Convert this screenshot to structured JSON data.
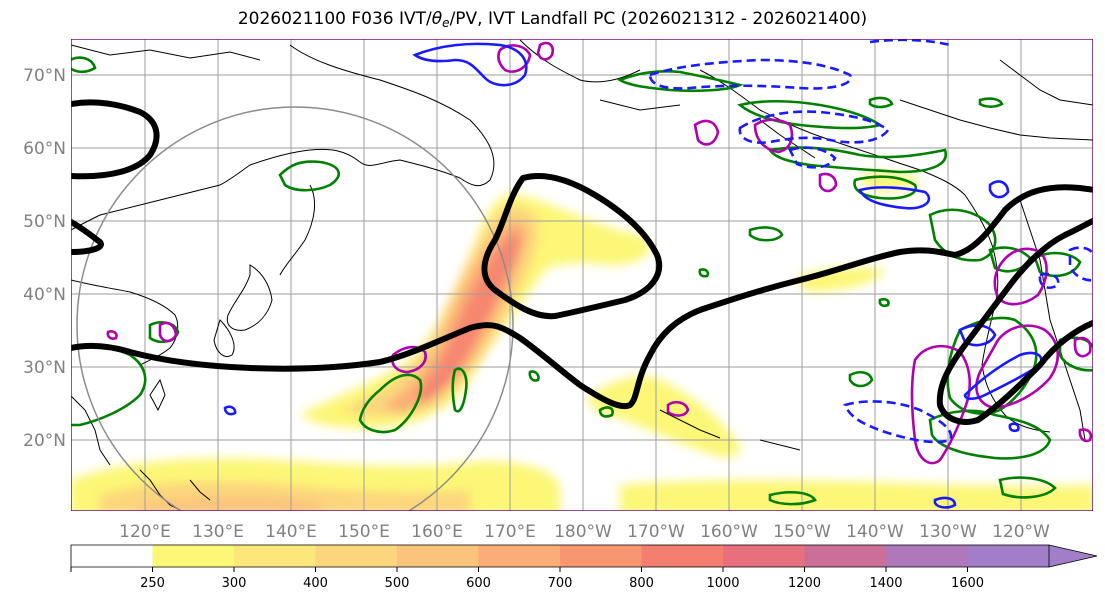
{
  "title": {
    "prefix": "2026021100 F036 IVT/",
    "theta": "θ",
    "sub": "e",
    "suffix": "/PV, IVT Landfall PC (2026021312 - 2026021400)"
  },
  "map": {
    "lat_labels": [
      "70°N",
      "60°N",
      "50°N",
      "40°N",
      "30°N",
      "20°N"
    ],
    "lon_labels": [
      "120°E",
      "130°E",
      "140°E",
      "150°E",
      "160°E",
      "170°E",
      "180°W",
      "170°W",
      "160°W",
      "150°W",
      "140°W",
      "130°W",
      "120°W"
    ],
    "colors": {
      "contour_black": "#000000",
      "theta_e_green": "#008000",
      "pv_magenta": "#b000b0",
      "dashed_blue": "#1a1aff",
      "range_circle": "#8c8c8c",
      "grid": "#9e9e9e",
      "frame": "#6a006a"
    }
  },
  "colorbar": {
    "ticks": [
      "250",
      "300",
      "400",
      "500",
      "600",
      "700",
      "800",
      "1000",
      "1200",
      "1400",
      "1600"
    ],
    "colors": [
      "#ffffff",
      "#fcf776",
      "#fce77a",
      "#fcd67c",
      "#fbc37b",
      "#fbad76",
      "#f99672",
      "#f47f70",
      "#e86f7d",
      "#cc6f96",
      "#af78ba",
      "#a27ec8"
    ]
  }
}
